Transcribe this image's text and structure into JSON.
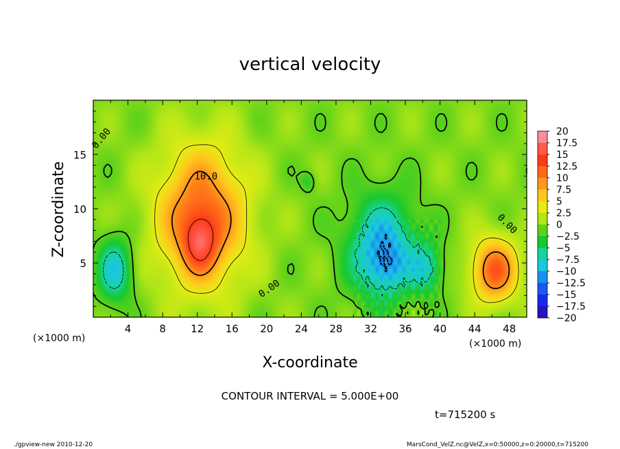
{
  "chart_data": {
    "type": "heatmap",
    "title": "vertical velocity",
    "xlabel": "X-coordinate",
    "ylabel": "Z-coordinate",
    "x_unit": "(×1000 m)",
    "y_unit": "(×1000 m)",
    "xlim": [
      0,
      50
    ],
    "ylim": [
      0,
      20
    ],
    "x_ticks": [
      "4",
      "8",
      "12",
      "16",
      "20",
      "24",
      "28",
      "32",
      "36",
      "40",
      "44",
      "48"
    ],
    "y_ticks": [
      "5",
      "10",
      "15"
    ],
    "colorbar_labels": [
      "20",
      "17.5",
      "15",
      "12.5",
      "10",
      "7.5",
      "5",
      "2.5",
      "0",
      "−2.5",
      "−5",
      "−7.5",
      "−10",
      "−12.5",
      "−15",
      "−17.5",
      "−20"
    ],
    "colorbar_colors": [
      "#ff8c9a",
      "#ff5a4a",
      "#ff3a1a",
      "#ff6a18",
      "#ff9a1a",
      "#ffc81e",
      "#e6ec14",
      "#b2e617",
      "#5ed21a",
      "#18c830",
      "#18d39a",
      "#1ac8e0",
      "#1a90f0",
      "#1a58f0",
      "#1a28e8",
      "#2414c0",
      "#6010b0"
    ],
    "background_value": 1,
    "field_blobs": [
      {
        "x": 12.5,
        "z": 9.2,
        "sx": 3.6,
        "sz": 4.6,
        "amp": 12
      },
      {
        "x": 12.3,
        "z": 6.8,
        "sx": 1.4,
        "sz": 1.8,
        "amp": 7
      },
      {
        "x": 46.3,
        "z": 4.3,
        "sx": 1.9,
        "sz": 2.1,
        "amp": 12
      },
      {
        "x": 33.4,
        "z": 6.3,
        "sx": 2.8,
        "sz": 3.3,
        "amp": -10
      },
      {
        "x": 33.8,
        "z": 4.6,
        "sx": 1.4,
        "sz": 1.4,
        "amp": -3
      },
      {
        "x": 38.5,
        "z": 4.5,
        "sx": 1.3,
        "sz": 1.6,
        "amp": -6
      },
      {
        "x": 2.5,
        "z": 4.3,
        "sx": 1.4,
        "sz": 2.1,
        "amp": -8
      },
      {
        "x": 24.8,
        "z": 12.5,
        "sx": 0.6,
        "sz": 0.7,
        "amp": -3
      }
    ],
    "contours": [
      {
        "label": "10.0",
        "kind": "solid"
      },
      {
        "label": "0.00",
        "kind": "solid"
      },
      {
        "label": "0.00",
        "kind": "solid"
      },
      {
        "label": "0.00",
        "kind": "solid"
      }
    ],
    "contour_interval_text": "CONTOUR INTERVAL = 5.000E+00",
    "time_text": "t=715200  s"
  },
  "footer": {
    "left": "./gpview-new  2010-12-20",
    "right": "MarsCond_VelZ.nc@VelZ,x=0:50000,z=0:20000,t=715200"
  },
  "colors": {
    "axis": "#000000",
    "background": "#ffffff"
  }
}
